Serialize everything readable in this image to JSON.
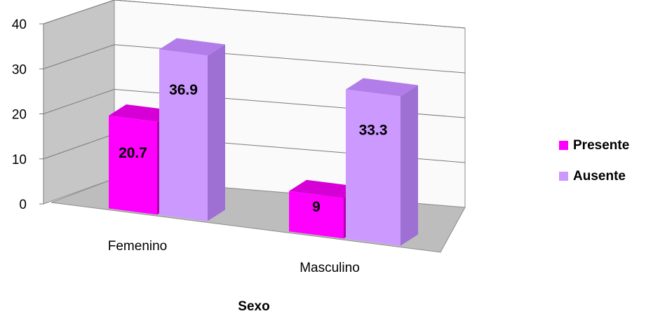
{
  "chart_data": {
    "type": "bar",
    "style": "3d-clustered-column",
    "categories": [
      "Femenino",
      "Masculino"
    ],
    "series": [
      {
        "name": "Presente",
        "values": [
          20.7,
          9
        ],
        "color": "#ff00ff"
      },
      {
        "name": "Ausente",
        "values": [
          36.9,
          33.3
        ],
        "color": "#cc99ff"
      }
    ],
    "xlabel": "Sexo",
    "ylabel": "",
    "ylim": [
      0,
      40
    ],
    "yticks": [
      0,
      10,
      20,
      30,
      40
    ],
    "grid": true,
    "legend_position": "right",
    "data_labels": [
      "20.7",
      "36.9",
      "9",
      "33.3"
    ]
  }
}
